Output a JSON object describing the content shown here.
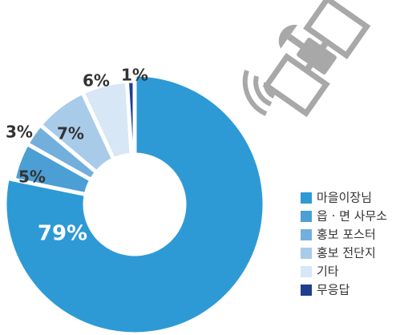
{
  "chart_data": {
    "type": "donut",
    "categories": [
      "마을이장님",
      "읍 · 면 사무소",
      "홍보 포스터",
      "홍보 전단지",
      "기타",
      "무응답"
    ],
    "values": [
      79,
      5,
      3,
      7,
      6,
      1
    ],
    "value_labels": [
      "79%",
      "5%",
      "3%",
      "7%",
      "6%",
      "1%"
    ],
    "colors": [
      "#2e9ad5",
      "#4b9fd4",
      "#73afdc",
      "#a8cbea",
      "#d7e7f6",
      "#1f3e8e"
    ]
  }
}
